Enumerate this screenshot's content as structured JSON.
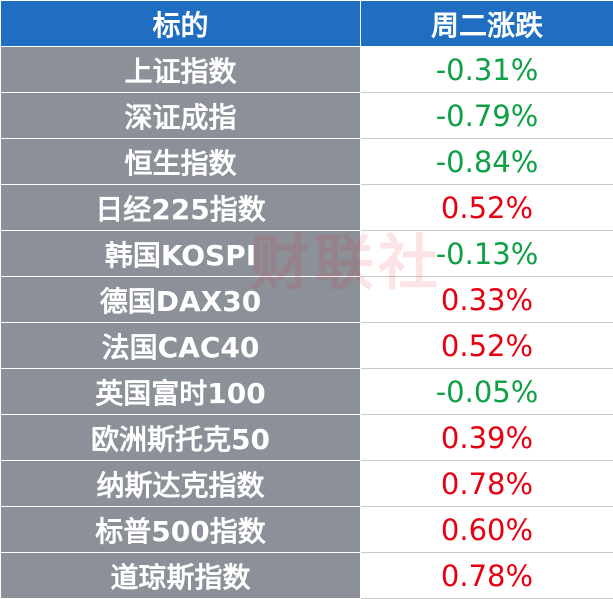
{
  "table": {
    "header": [
      "标的",
      "周二涨跌"
    ],
    "rows": [
      [
        "上证指数",
        "-0.31%"
      ],
      [
        "深证成指",
        "-0.79%"
      ],
      [
        "恒生指数",
        "-0.84%"
      ],
      [
        "日经225指数",
        "0.52%"
      ],
      [
        "韩国KOSPI",
        "-0.13%"
      ],
      [
        "德国DAX30",
        "0.33%"
      ],
      [
        "法国CAC40",
        "0.52%"
      ],
      [
        "英国富时100",
        "-0.05%"
      ],
      [
        "欧洲斯托克50",
        "0.39%"
      ],
      [
        "纳斯达克指数",
        "0.78%"
      ],
      [
        "标普500指数",
        "0.60%"
      ],
      [
        "道琼斯指数",
        "0.78%"
      ]
    ]
  },
  "watermark": "财联社"
}
